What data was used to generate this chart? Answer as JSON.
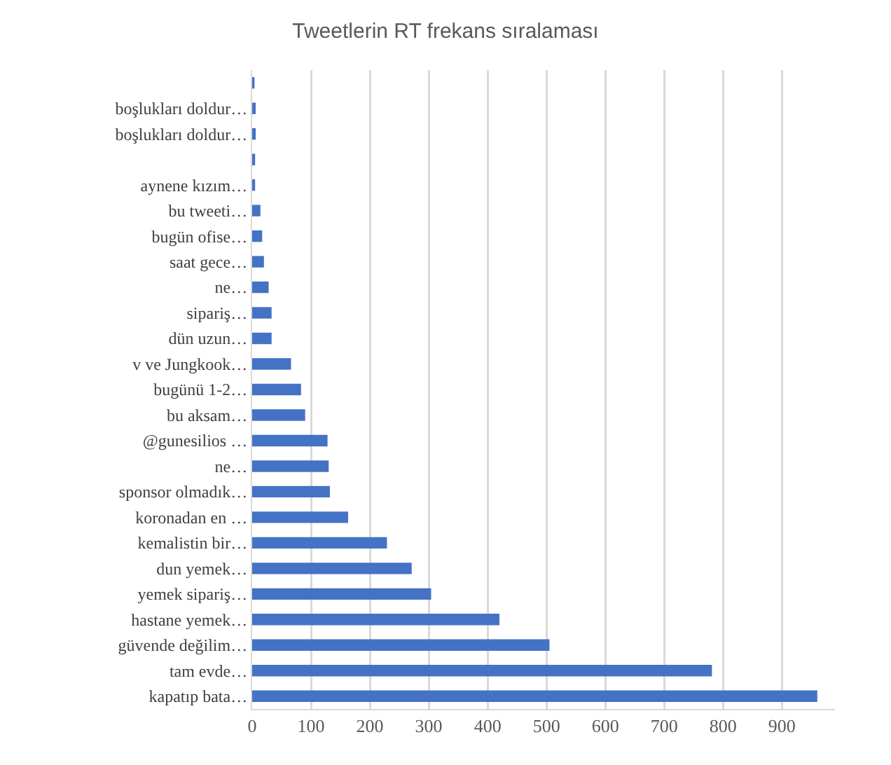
{
  "chart_data": {
    "type": "bar",
    "orientation": "horizontal",
    "title": "Tweetlerin RT frekans sıralaması",
    "categories": [
      null,
      "boşlukları doldur…",
      "boşlukları doldur…",
      null,
      "aynene kızım…",
      "bu tweeti…",
      "bugün ofise…",
      "saat gece…",
      "ne…",
      "sipariş…",
      "dün uzun…",
      "v ve Jungkook…",
      "bugünü 1-2…",
      "bu aksam…",
      "@gunesilios …",
      "ne…",
      "sponsor olmadık…",
      "koronadan en …",
      "kemalistin bir…",
      "dun yemek…",
      "yemek sipariş…",
      "hastane yemek…",
      "güvende değilim…",
      "tam evde…",
      "kapatıp bata…"
    ],
    "values": [
      4,
      6,
      6,
      5,
      5,
      14,
      17,
      20,
      28,
      33,
      33,
      66,
      83,
      90,
      128,
      130,
      132,
      163,
      229,
      271,
      304,
      420,
      505,
      781,
      960
    ],
    "color": "#4472c4",
    "xlim": [
      0,
      990
    ],
    "xticks": [
      0,
      100,
      200,
      300,
      400,
      500,
      600,
      700,
      800,
      900
    ],
    "grid": "x"
  }
}
